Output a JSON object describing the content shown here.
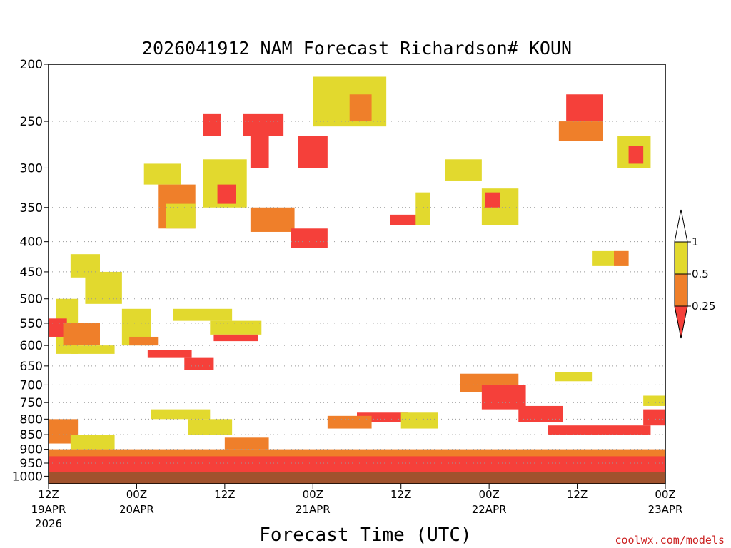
{
  "chart_data": {
    "type": "heatmap",
    "title": "2026041912 NAM Forecast Richardson# KOUN",
    "xlabel": "Forecast Time (UTC)",
    "ylabel": "",
    "credit": "coolwx.com/models",
    "yticks": [
      "200",
      "250",
      "300",
      "350",
      "400",
      "450",
      "500",
      "550",
      "600",
      "650",
      "700",
      "750",
      "800",
      "850",
      "900",
      "950",
      "1000"
    ],
    "ylim": [
      1030,
      200
    ],
    "xlim_hours": [
      0,
      84
    ],
    "xticks": [
      {
        "hour": 0,
        "time": "12Z",
        "date": "19APR",
        "year": "2026"
      },
      {
        "hour": 12,
        "time": "00Z",
        "date": "20APR",
        "year": ""
      },
      {
        "hour": 24,
        "time": "12Z",
        "date": "",
        "year": ""
      },
      {
        "hour": 36,
        "time": "00Z",
        "date": "21APR",
        "year": ""
      },
      {
        "hour": 48,
        "time": "12Z",
        "date": "",
        "year": ""
      },
      {
        "hour": 60,
        "time": "00Z",
        "date": "22APR",
        "year": ""
      },
      {
        "hour": 72,
        "time": "12Z",
        "date": "",
        "year": ""
      },
      {
        "hour": 84,
        "time": "00Z",
        "date": "23APR",
        "year": ""
      }
    ],
    "legend": {
      "position": "right",
      "levels": [
        "1",
        "0.5",
        "0.25"
      ],
      "bins": [
        {
          "label": "> 1",
          "color": "#ffffff"
        },
        {
          "label": "0.5 - 1",
          "color": "#e2d92e"
        },
        {
          "label": "0.25 - 0.5",
          "color": "#ef7f2a"
        },
        {
          "label": "< 0.25",
          "color": "#f5403a"
        }
      ]
    },
    "colors": {
      "low": "#f5403a",
      "mid": "#ef7f2a",
      "high": "#e2d92e",
      "ground": "#a0522d",
      "grid": "#999999"
    },
    "regions": [
      {
        "h0": 1,
        "h1": 4,
        "p0": 500,
        "p1": 620,
        "bin": "high"
      },
      {
        "h0": 0,
        "h1": 2.5,
        "p0": 540,
        "p1": 580,
        "bin": "low"
      },
      {
        "h0": 2,
        "h1": 7,
        "p0": 550,
        "p1": 600,
        "bin": "mid"
      },
      {
        "h0": 3,
        "h1": 9,
        "p0": 600,
        "p1": 620,
        "bin": "high"
      },
      {
        "h0": 3,
        "h1": 7,
        "p0": 420,
        "p1": 460,
        "bin": "high"
      },
      {
        "h0": 5,
        "h1": 10,
        "p0": 450,
        "p1": 510,
        "bin": "high"
      },
      {
        "h0": 10,
        "h1": 14,
        "p0": 520,
        "p1": 600,
        "bin": "high"
      },
      {
        "h0": 11,
        "h1": 15,
        "p0": 580,
        "p1": 600,
        "bin": "mid"
      },
      {
        "h0": 13.5,
        "h1": 19.5,
        "p0": 610,
        "p1": 630,
        "bin": "low"
      },
      {
        "h0": 18.5,
        "h1": 22.5,
        "p0": 630,
        "p1": 660,
        "bin": "low"
      },
      {
        "h0": 17,
        "h1": 25,
        "p0": 520,
        "p1": 545,
        "bin": "high"
      },
      {
        "h0": 22,
        "h1": 29,
        "p0": 545,
        "p1": 575,
        "bin": "high"
      },
      {
        "h0": 22.5,
        "h1": 28.5,
        "p0": 575,
        "p1": 590,
        "bin": "low"
      },
      {
        "h0": 13,
        "h1": 18,
        "p0": 295,
        "p1": 320,
        "bin": "high"
      },
      {
        "h0": 15,
        "h1": 20,
        "p0": 320,
        "p1": 380,
        "bin": "mid"
      },
      {
        "h0": 16,
        "h1": 20,
        "p0": 345,
        "p1": 380,
        "bin": "high"
      },
      {
        "h0": 21,
        "h1": 27,
        "p0": 290,
        "p1": 350,
        "bin": "high"
      },
      {
        "h0": 23,
        "h1": 25.5,
        "p0": 320,
        "p1": 345,
        "bin": "low"
      },
      {
        "h0": 21,
        "h1": 23.5,
        "p0": 243,
        "p1": 265,
        "bin": "low"
      },
      {
        "h0": 26.5,
        "h1": 32,
        "p0": 243,
        "p1": 265,
        "bin": "low"
      },
      {
        "h0": 27.5,
        "h1": 30,
        "p0": 265,
        "p1": 300,
        "bin": "low"
      },
      {
        "h0": 27.5,
        "h1": 33.5,
        "p0": 350,
        "p1": 385,
        "bin": "mid"
      },
      {
        "h0": 33,
        "h1": 38,
        "p0": 380,
        "p1": 410,
        "bin": "low"
      },
      {
        "h0": 34,
        "h1": 38,
        "p0": 265,
        "p1": 300,
        "bin": "low"
      },
      {
        "h0": 36,
        "h1": 46,
        "p0": 210,
        "p1": 255,
        "bin": "high"
      },
      {
        "h0": 41,
        "h1": 44,
        "p0": 225,
        "p1": 250,
        "bin": "mid"
      },
      {
        "h0": 46.5,
        "h1": 50.5,
        "p0": 360,
        "p1": 375,
        "bin": "low"
      },
      {
        "h0": 50,
        "h1": 52,
        "p0": 330,
        "p1": 375,
        "bin": "high"
      },
      {
        "h0": 54,
        "h1": 59,
        "p0": 290,
        "p1": 315,
        "bin": "high"
      },
      {
        "h0": 59,
        "h1": 64,
        "p0": 325,
        "p1": 375,
        "bin": "high"
      },
      {
        "h0": 59.5,
        "h1": 61.5,
        "p0": 330,
        "p1": 350,
        "bin": "low"
      },
      {
        "h0": 70.5,
        "h1": 75.5,
        "p0": 225,
        "p1": 250,
        "bin": "low"
      },
      {
        "h0": 69.5,
        "h1": 75.5,
        "p0": 250,
        "p1": 270,
        "bin": "mid"
      },
      {
        "h0": 77.5,
        "h1": 82,
        "p0": 265,
        "p1": 300,
        "bin": "high"
      },
      {
        "h0": 79,
        "h1": 81,
        "p0": 275,
        "p1": 295,
        "bin": "low"
      },
      {
        "h0": 74,
        "h1": 79,
        "p0": 415,
        "p1": 440,
        "bin": "high"
      },
      {
        "h0": 77,
        "h1": 79,
        "p0": 415,
        "p1": 440,
        "bin": "mid"
      },
      {
        "h0": 56,
        "h1": 64,
        "p0": 670,
        "p1": 720,
        "bin": "mid"
      },
      {
        "h0": 59,
        "h1": 65,
        "p0": 700,
        "p1": 770,
        "bin": "low"
      },
      {
        "h0": 64,
        "h1": 70,
        "p0": 760,
        "p1": 810,
        "bin": "low"
      },
      {
        "h0": 68,
        "h1": 82,
        "p0": 820,
        "p1": 850,
        "bin": "low"
      },
      {
        "h0": 69,
        "h1": 74,
        "p0": 665,
        "p1": 690,
        "bin": "high"
      },
      {
        "h0": 42,
        "h1": 49,
        "p0": 780,
        "p1": 810,
        "bin": "low"
      },
      {
        "h0": 38,
        "h1": 44,
        "p0": 790,
        "p1": 830,
        "bin": "mid"
      },
      {
        "h0": 48,
        "h1": 53,
        "p0": 780,
        "p1": 830,
        "bin": "high"
      },
      {
        "h0": 0,
        "h1": 4,
        "p0": 800,
        "p1": 880,
        "bin": "mid"
      },
      {
        "h0": 3,
        "h1": 9,
        "p0": 850,
        "p1": 900,
        "bin": "high"
      },
      {
        "h0": 14,
        "h1": 22,
        "p0": 770,
        "p1": 800,
        "bin": "high"
      },
      {
        "h0": 19,
        "h1": 25,
        "p0": 800,
        "p1": 850,
        "bin": "high"
      },
      {
        "h0": 24,
        "h1": 30,
        "p0": 860,
        "p1": 900,
        "bin": "mid"
      },
      {
        "h0": 81,
        "h1": 84,
        "p0": 770,
        "p1": 820,
        "bin": "low"
      },
      {
        "h0": 81,
        "h1": 84,
        "p0": 730,
        "p1": 760,
        "bin": "high"
      },
      {
        "h0": 0,
        "h1": 84,
        "p0": 920,
        "p1": 985,
        "bin": "low"
      },
      {
        "h0": 0,
        "h1": 84,
        "p0": 900,
        "p1": 925,
        "bin": "mid"
      }
    ]
  }
}
